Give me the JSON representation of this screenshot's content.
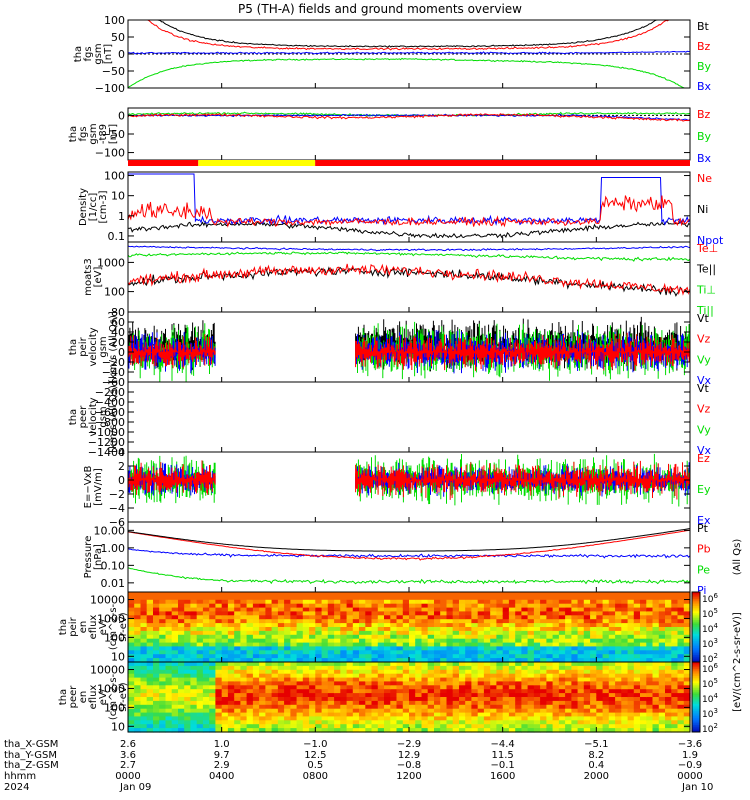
{
  "chart_data": {
    "type": "line",
    "title": "P5 (TH-A) fields and ground moments overview",
    "colors": {
      "black": "#000000",
      "red": "#ff0000",
      "green": "#00dd00",
      "blue": "#0000ff",
      "yellow": "#ffff00"
    },
    "panels": [
      {
        "id": "fgs",
        "ylabel": [
          "tha",
          "fgs",
          "gsm",
          "[nT]"
        ],
        "yticks": [
          "100",
          "50",
          "0",
          "−50",
          "−100"
        ],
        "ylim": [
          -100,
          100
        ],
        "legend": [
          {
            "text": "Bt",
            "color": "black"
          },
          {
            "text": "Bz",
            "color": "red"
          },
          {
            "text": "By",
            "color": "green"
          },
          {
            "text": "Bx",
            "color": "blue"
          }
        ]
      },
      {
        "id": "fgs_t89",
        "ylabel": [
          "tha",
          "fgs",
          "gsm",
          "-t89",
          "[nT]"
        ],
        "yticks": [
          "0",
          "−50",
          "−100"
        ],
        "ylim": [
          -120,
          20
        ],
        "legend": [
          {
            "text": "Bz",
            "color": "red"
          },
          {
            "text": "By",
            "color": "green"
          },
          {
            "text": "Bx",
            "color": "blue"
          }
        ]
      },
      {
        "id": "density",
        "ylabel": [
          "Density",
          "[1/cc]",
          "[cm-3]"
        ],
        "yticks": [
          "100",
          "10",
          "1",
          "0.1"
        ],
        "ylim": [
          0.05,
          150
        ],
        "scale": "log",
        "legend": [
          {
            "text": "Ne",
            "color": "red"
          },
          {
            "text": "Ni",
            "color": "black"
          },
          {
            "text": "Npot",
            "color": "blue"
          }
        ]
      },
      {
        "id": "temp",
        "ylabel": [
          "moats3",
          "[eV]"
        ],
        "yticks": [
          "1000",
          "100"
        ],
        "ylim": [
          20,
          5000
        ],
        "scale": "log",
        "legend": [
          {
            "text": "Te⊥",
            "color": "red"
          },
          {
            "text": "Te||",
            "color": "black"
          },
          {
            "text": "Ti⊥",
            "color": "green"
          },
          {
            "text": "Ti||",
            "color": "green"
          }
        ]
      },
      {
        "id": "peir_vel",
        "ylabel": [
          "tha",
          "peir",
          "velocity",
          "gsm",
          "[km/s (All Qs)]"
        ],
        "yticks": [
          "80",
          "60",
          "40",
          "20",
          "0",
          "−20",
          "−40",
          "−60"
        ],
        "ylim": [
          -60,
          80
        ],
        "legend": [
          {
            "text": "Vt",
            "color": "black"
          },
          {
            "text": "Vz",
            "color": "red"
          },
          {
            "text": "Vy",
            "color": "green"
          },
          {
            "text": "Vx",
            "color": "blue"
          }
        ]
      },
      {
        "id": "peer_vel",
        "ylabel": [
          "tha",
          "peer",
          "velocity",
          "gsm",
          "[km/s (All Qs)]"
        ],
        "yticks": [
          "−200",
          "−400",
          "−600",
          "−800",
          "−1000",
          "−1200",
          "−1400"
        ],
        "ylim": [
          -1400,
          0
        ],
        "legend": [
          {
            "text": "Vt",
            "color": "black"
          },
          {
            "text": "Vz",
            "color": "red"
          },
          {
            "text": "Vy",
            "color": "green"
          },
          {
            "text": "Vx",
            "color": "blue"
          }
        ]
      },
      {
        "id": "efield",
        "ylabel": [
          "E=−VxB",
          "[mV/m]"
        ],
        "yticks": [
          "4",
          "2",
          "0",
          "−2",
          "−4",
          "−6"
        ],
        "ylim": [
          -6,
          4
        ],
        "legend": [
          {
            "text": "Ez",
            "color": "red"
          },
          {
            "text": "Ey",
            "color": "green"
          },
          {
            "text": "Ex",
            "color": "blue"
          }
        ]
      },
      {
        "id": "pressure",
        "ylabel": [
          "Pressure",
          "[nPa]"
        ],
        "yticks": [
          "10.00",
          "1.00",
          "0.10",
          "0.01"
        ],
        "ylim": [
          0.003,
          30
        ],
        "scale": "log",
        "legend": [
          {
            "text": "Pt",
            "color": "black"
          },
          {
            "text": "Pb",
            "color": "red"
          },
          {
            "text": "Pe",
            "color": "green"
          },
          {
            "text": "Pi",
            "color": "blue"
          }
        ],
        "legend_side": "(All Qs)"
      },
      {
        "id": "peir_spec",
        "type": "heatmap",
        "ylabel": [
          "tha",
          "peir",
          "en",
          "eflux",
          "eV/",
          "(cm^2-s-",
          "sr-eV)"
        ],
        "yticks": [
          "10000",
          "1000",
          "100",
          "10"
        ],
        "ylim": [
          5,
          25000
        ],
        "scale": "log"
      },
      {
        "id": "peer_spec",
        "type": "heatmap",
        "ylabel": [
          "tha",
          "peer",
          "en",
          "eflux",
          "eV/",
          "(cm^2-s-",
          "sr-eV)"
        ],
        "yticks": [
          "10000",
          "1000",
          "100",
          "10"
        ],
        "ylim": [
          5,
          25000
        ],
        "scale": "log"
      }
    ],
    "colorbar": {
      "ticks": [
        "10^6",
        "10^5",
        "10^4",
        "10^3",
        "10^2"
      ],
      "label": "[eV/(cm^2-s-sr-eV)]"
    },
    "mode_bar": [
      {
        "from": 0,
        "to": 0.125,
        "color": "red"
      },
      {
        "from": 0.125,
        "to": 0.333,
        "color": "yellow"
      },
      {
        "from": 0.333,
        "to": 1,
        "color": "red"
      }
    ],
    "x_axis": {
      "row_labels": [
        "tha_X-GSM",
        "tha_Y-GSM",
        "tha_Z-GSM",
        "hhmm",
        "2024"
      ],
      "ticks": [
        {
          "vals": [
            "2.6",
            "3.6",
            "2.7",
            "0000",
            "Jan 09"
          ]
        },
        {
          "vals": [
            "1.0",
            "9.7",
            "2.9",
            "0400",
            ""
          ]
        },
        {
          "vals": [
            "−1.0",
            "12.5",
            "0.5",
            "0800",
            ""
          ]
        },
        {
          "vals": [
            "−2.9",
            "12.9",
            "−0.8",
            "1200",
            ""
          ]
        },
        {
          "vals": [
            "−4.4",
            "11.5",
            "−0.1",
            "1600",
            ""
          ]
        },
        {
          "vals": [
            "−5.1",
            "8.2",
            "0.4",
            "2000",
            ""
          ]
        },
        {
          "vals": [
            "−3.6",
            "1.9",
            "−0.9",
            "0000",
            "Jan 10"
          ]
        }
      ]
    }
  }
}
